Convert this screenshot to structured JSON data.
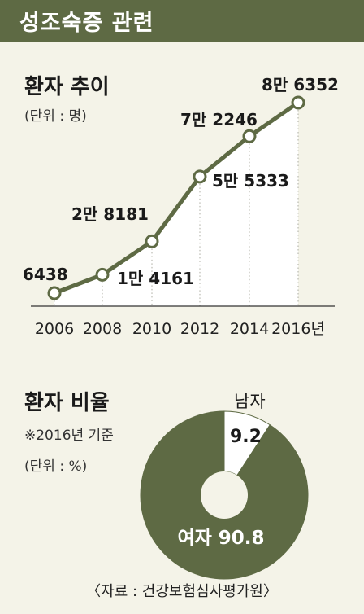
{
  "header": {
    "title": "성조숙증 관련"
  },
  "trend": {
    "title": "환자 추이",
    "unit_note": "(단위 : 명)"
  },
  "ratio": {
    "title": "환자 비율",
    "basis_note": "※2016년 기준",
    "unit_note": "(단위 : %)"
  },
  "source": "〈자료 : 건강보험심사평가원〉",
  "colors": {
    "header_bg": "#5e6a44",
    "line": "#5e6a44",
    "pie_female": "#5e6a44",
    "pie_male": "#ffffff",
    "background": "#f4f3e8"
  },
  "chart_data": [
    {
      "type": "line",
      "title": "환자 추이",
      "unit": "명",
      "x": [
        "2006",
        "2008",
        "2010",
        "2012",
        "2014",
        "2016"
      ],
      "x_suffix": "년",
      "values": [
        6438,
        14161,
        28181,
        55333,
        72246,
        86352
      ],
      "data_labels": [
        "6438",
        "1만 4161",
        "2만 8181",
        "5만 5333",
        "7만 2246",
        "8만 6352"
      ],
      "grid": false
    },
    {
      "type": "pie",
      "title": "환자 비율",
      "unit": "%",
      "slices": [
        {
          "name": "남자",
          "value": 9.2,
          "label": "9.2"
        },
        {
          "name": "여자",
          "value": 90.8,
          "label": "90.8"
        }
      ]
    }
  ]
}
